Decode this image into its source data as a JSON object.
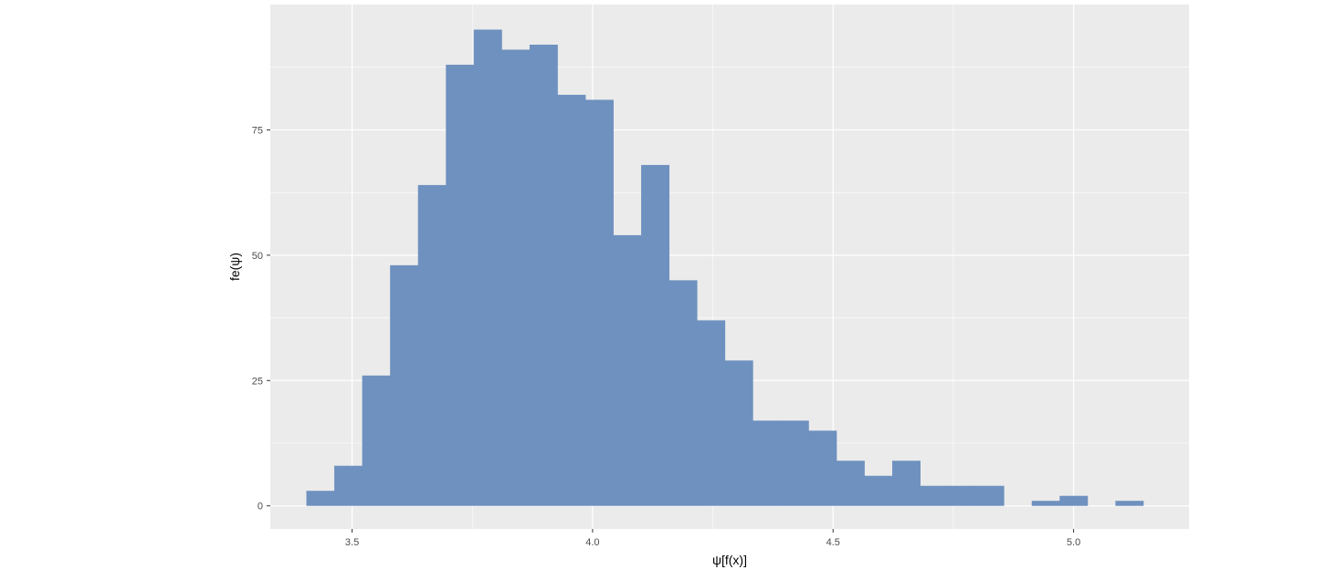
{
  "chart_data": {
    "type": "bar",
    "subtype": "histogram",
    "title": "",
    "xlabel": "ψ[f(x)]",
    "ylabel": "fe(ψ)",
    "xlim": [
      3.33,
      5.24
    ],
    "ylim": [
      -4.6,
      100
    ],
    "xticks": [
      "3.5",
      "4.0",
      "4.5",
      "5.0"
    ],
    "yticks": [
      "0",
      "25",
      "50",
      "75"
    ],
    "grid": true,
    "legend": "none",
    "bin_width": 0.058,
    "bins_start": [
      3.405,
      3.463,
      3.521,
      3.579,
      3.637,
      3.695,
      3.753,
      3.811,
      3.869,
      3.927,
      3.985,
      4.043,
      4.101,
      4.159,
      4.217,
      4.275,
      4.333,
      4.391,
      4.449,
      4.507,
      4.565,
      4.623,
      4.681,
      4.739,
      4.797,
      4.855,
      4.913,
      4.971,
      5.029,
      5.087
    ],
    "values": [
      3,
      8,
      26,
      48,
      64,
      88,
      95,
      91,
      92,
      82,
      81,
      54,
      68,
      45,
      37,
      29,
      17,
      17,
      15,
      9,
      6,
      9,
      4,
      4,
      4,
      0,
      1,
      2,
      0,
      1
    ],
    "colors": {
      "fill": "#6e91bf",
      "panel": "#ebebeb",
      "grid": "#ffffff",
      "axis_text": "#4d4d4d",
      "title_text": "#000000"
    }
  }
}
